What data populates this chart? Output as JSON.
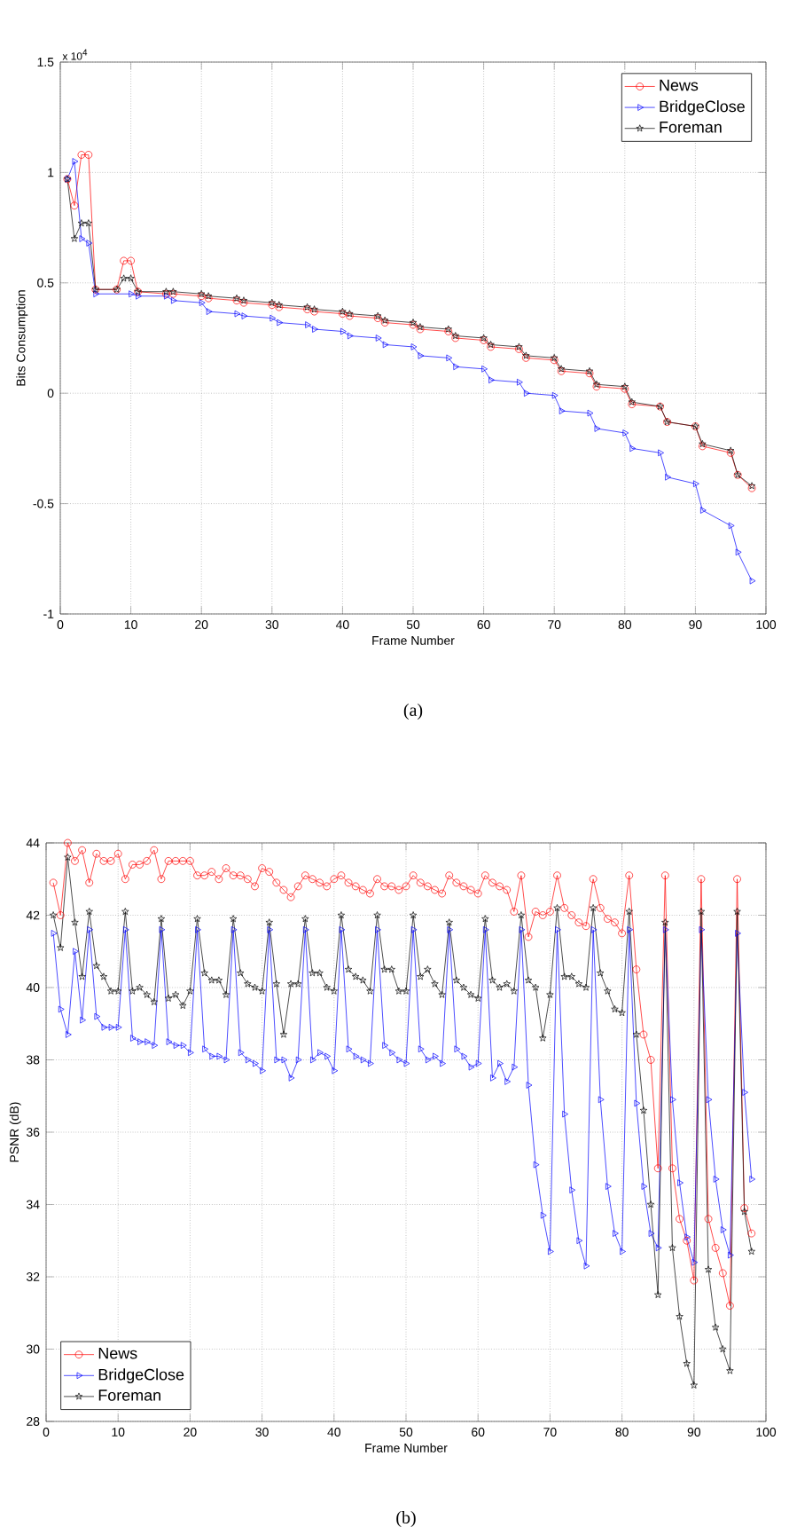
{
  "chart_data": [
    {
      "type": "line",
      "xlabel": "Frame Number",
      "ylabel": "Bits Consumption",
      "annotations": [
        "x 10$^{4}$",
        "(a)"
      ],
      "xlim": [
        0,
        100
      ],
      "xticks": [
        0,
        10,
        20,
        30,
        40,
        50,
        60,
        70,
        80,
        90,
        100
      ],
      "ylim": [
        -1,
        1.5
      ],
      "yticks": [
        -1,
        -0.5,
        0,
        0.5,
        1,
        1.5
      ],
      "grid": true,
      "legend": "top right",
      "series": [
        {
          "name": "News",
          "color": "#ff0000",
          "marker": "circle",
          "x": [
            1,
            2,
            3,
            4,
            5,
            8,
            9,
            10,
            11,
            15,
            16,
            20,
            21,
            25,
            26,
            30,
            31,
            35,
            36,
            40,
            41,
            45,
            46,
            50,
            51,
            55,
            56,
            60,
            61,
            65,
            66,
            70,
            71,
            75,
            76,
            80,
            81,
            85,
            86,
            90,
            91,
            95,
            96,
            98
          ],
          "values": [
            0.97,
            0.85,
            1.08,
            1.08,
            0.47,
            0.47,
            0.6,
            0.6,
            0.46,
            0.45,
            0.45,
            0.44,
            0.43,
            0.42,
            0.41,
            0.4,
            0.39,
            0.38,
            0.37,
            0.36,
            0.35,
            0.34,
            0.32,
            0.31,
            0.29,
            0.28,
            0.25,
            0.24,
            0.21,
            0.2,
            0.16,
            0.15,
            0.1,
            0.09,
            0.03,
            0.02,
            -0.05,
            -0.06,
            -0.13,
            -0.15,
            -0.24,
            -0.27,
            -0.37,
            -0.43
          ]
        },
        {
          "name": "BridgeClose",
          "color": "#0000ff",
          "marker": "triangle",
          "x": [
            1,
            2,
            3,
            4,
            5,
            10,
            11,
            15,
            16,
            20,
            21,
            25,
            26,
            30,
            31,
            35,
            36,
            40,
            41,
            45,
            46,
            50,
            51,
            55,
            56,
            60,
            61,
            65,
            66,
            70,
            71,
            75,
            76,
            80,
            81,
            85,
            86,
            90,
            91,
            95,
            96,
            98
          ],
          "values": [
            0.97,
            1.05,
            0.7,
            0.68,
            0.45,
            0.45,
            0.44,
            0.44,
            0.42,
            0.41,
            0.37,
            0.36,
            0.35,
            0.34,
            0.32,
            0.31,
            0.29,
            0.28,
            0.26,
            0.25,
            0.22,
            0.21,
            0.17,
            0.16,
            0.12,
            0.11,
            0.06,
            0.05,
            0.0,
            -0.01,
            -0.08,
            -0.09,
            -0.16,
            -0.18,
            -0.25,
            -0.27,
            -0.38,
            -0.41,
            -0.53,
            -0.6,
            -0.72,
            -0.85
          ]
        },
        {
          "name": "Foreman",
          "color": "#000000",
          "marker": "star",
          "x": [
            1,
            2,
            3,
            4,
            5,
            8,
            9,
            10,
            11,
            15,
            16,
            20,
            21,
            25,
            26,
            30,
            31,
            35,
            36,
            40,
            41,
            45,
            46,
            50,
            51,
            55,
            56,
            60,
            61,
            65,
            66,
            70,
            71,
            75,
            76,
            80,
            81,
            85,
            86,
            90,
            91,
            95,
            96,
            98
          ],
          "values": [
            0.97,
            0.7,
            0.77,
            0.77,
            0.47,
            0.47,
            0.52,
            0.52,
            0.46,
            0.46,
            0.46,
            0.45,
            0.44,
            0.43,
            0.42,
            0.41,
            0.4,
            0.39,
            0.38,
            0.37,
            0.36,
            0.35,
            0.33,
            0.32,
            0.3,
            0.29,
            0.26,
            0.25,
            0.22,
            0.21,
            0.17,
            0.16,
            0.11,
            0.1,
            0.04,
            0.03,
            -0.04,
            -0.06,
            -0.13,
            -0.15,
            -0.23,
            -0.26,
            -0.37,
            -0.42
          ]
        }
      ]
    },
    {
      "type": "line",
      "xlabel": "Frame Number",
      "ylabel": "PSNR (dB)",
      "annotations": [
        "(b)"
      ],
      "xlim": [
        0,
        100
      ],
      "xticks": [
        0,
        10,
        20,
        30,
        40,
        50,
        60,
        70,
        80,
        90,
        100
      ],
      "ylim": [
        28,
        44
      ],
      "yticks": [
        28,
        30,
        32,
        34,
        36,
        38,
        40,
        42,
        44
      ],
      "grid": true,
      "legend": "bottom left",
      "x": [
        1,
        2,
        3,
        4,
        5,
        6,
        7,
        8,
        9,
        10,
        11,
        12,
        13,
        14,
        15,
        16,
        17,
        18,
        19,
        20,
        21,
        22,
        23,
        24,
        25,
        26,
        27,
        28,
        29,
        30,
        31,
        32,
        33,
        34,
        35,
        36,
        37,
        38,
        39,
        40,
        41,
        42,
        43,
        44,
        45,
        46,
        47,
        48,
        49,
        50,
        51,
        52,
        53,
        54,
        55,
        56,
        57,
        58,
        59,
        60,
        61,
        62,
        63,
        64,
        65,
        66,
        67,
        68,
        69,
        70,
        71,
        72,
        73,
        74,
        75,
        76,
        77,
        78,
        79,
        80,
        81,
        82,
        83,
        84,
        85,
        86,
        87,
        88,
        89,
        90,
        91,
        92,
        93,
        94,
        95,
        96,
        97,
        98
      ],
      "series": [
        {
          "name": "News",
          "color": "#ff0000",
          "marker": "circle",
          "values": [
            42.9,
            42.0,
            44.0,
            43.5,
            43.8,
            42.9,
            43.7,
            43.5,
            43.5,
            43.7,
            43.0,
            43.4,
            43.4,
            43.5,
            43.8,
            43.0,
            43.5,
            43.5,
            43.5,
            43.5,
            43.1,
            43.1,
            43.2,
            43.0,
            43.3,
            43.1,
            43.1,
            43.0,
            42.8,
            43.3,
            43.2,
            42.9,
            42.7,
            42.5,
            42.8,
            43.1,
            43.0,
            42.9,
            42.8,
            43.0,
            43.1,
            42.9,
            42.8,
            42.7,
            42.6,
            43.0,
            42.8,
            42.8,
            42.7,
            42.8,
            43.1,
            42.9,
            42.8,
            42.7,
            42.6,
            43.1,
            42.9,
            42.8,
            42.7,
            42.6,
            43.1,
            42.9,
            42.8,
            42.7,
            42.1,
            43.1,
            41.4,
            42.1,
            42.0,
            42.1,
            43.1,
            42.2,
            42.0,
            41.8,
            41.7,
            43.0,
            42.2,
            41.9,
            41.8,
            41.5,
            43.1,
            40.5,
            38.7,
            38.0,
            35.0,
            43.1,
            35.0,
            33.6,
            33.0,
            31.9,
            43.0,
            33.6,
            32.8,
            32.1,
            31.2,
            43.0,
            33.9,
            33.2
          ]
        },
        {
          "name": "BridgeClose",
          "color": "#0000ff",
          "marker": "triangle",
          "values": [
            41.5,
            39.4,
            38.7,
            41.0,
            39.1,
            41.6,
            39.2,
            38.9,
            38.9,
            38.9,
            41.6,
            38.6,
            38.5,
            38.5,
            38.4,
            41.6,
            38.5,
            38.4,
            38.4,
            38.2,
            41.6,
            38.3,
            38.1,
            38.1,
            38.0,
            41.6,
            38.2,
            38.0,
            37.9,
            37.7,
            41.6,
            38.0,
            38.0,
            37.5,
            38.0,
            41.6,
            38.0,
            38.2,
            38.1,
            37.7,
            41.6,
            38.3,
            38.1,
            38.0,
            37.9,
            41.6,
            38.4,
            38.2,
            38.0,
            37.9,
            41.6,
            38.3,
            38.0,
            38.1,
            37.9,
            41.6,
            38.3,
            38.1,
            37.8,
            37.9,
            41.6,
            37.5,
            37.9,
            37.4,
            37.8,
            41.6,
            37.3,
            35.1,
            33.7,
            32.7,
            41.6,
            36.5,
            34.4,
            33.0,
            32.3,
            41.6,
            36.9,
            34.5,
            33.2,
            32.7,
            41.6,
            36.8,
            34.5,
            33.2,
            32.8,
            41.6,
            36.9,
            34.6,
            33.1,
            32.4,
            41.6,
            36.9,
            34.7,
            33.3,
            32.6,
            41.5,
            37.1,
            34.7
          ]
        },
        {
          "name": "Foreman",
          "color": "#000000",
          "marker": "star",
          "values": [
            42.0,
            41.1,
            43.6,
            41.8,
            40.3,
            42.1,
            40.6,
            40.3,
            39.9,
            39.9,
            42.1,
            39.9,
            40.0,
            39.8,
            39.6,
            41.9,
            39.7,
            39.8,
            39.5,
            39.9,
            41.9,
            40.4,
            40.2,
            40.2,
            39.8,
            41.9,
            40.4,
            40.1,
            40.0,
            39.9,
            41.8,
            40.1,
            38.7,
            40.1,
            40.1,
            41.9,
            40.4,
            40.4,
            40.0,
            39.9,
            42.0,
            40.5,
            40.3,
            40.2,
            39.9,
            42.0,
            40.5,
            40.5,
            39.9,
            39.9,
            42.0,
            40.3,
            40.5,
            40.1,
            39.8,
            41.8,
            40.2,
            40.0,
            39.8,
            39.7,
            41.9,
            40.2,
            40.0,
            40.1,
            39.9,
            42.0,
            40.2,
            40.0,
            38.6,
            39.8,
            42.2,
            40.3,
            40.3,
            40.1,
            40.0,
            42.2,
            40.4,
            39.9,
            39.4,
            39.3,
            42.1,
            38.7,
            36.6,
            34.0,
            31.5,
            41.8,
            32.8,
            30.9,
            29.6,
            29.0,
            42.1,
            32.2,
            30.6,
            30.0,
            29.4,
            42.1,
            33.8,
            32.7
          ]
        }
      ]
    }
  ]
}
